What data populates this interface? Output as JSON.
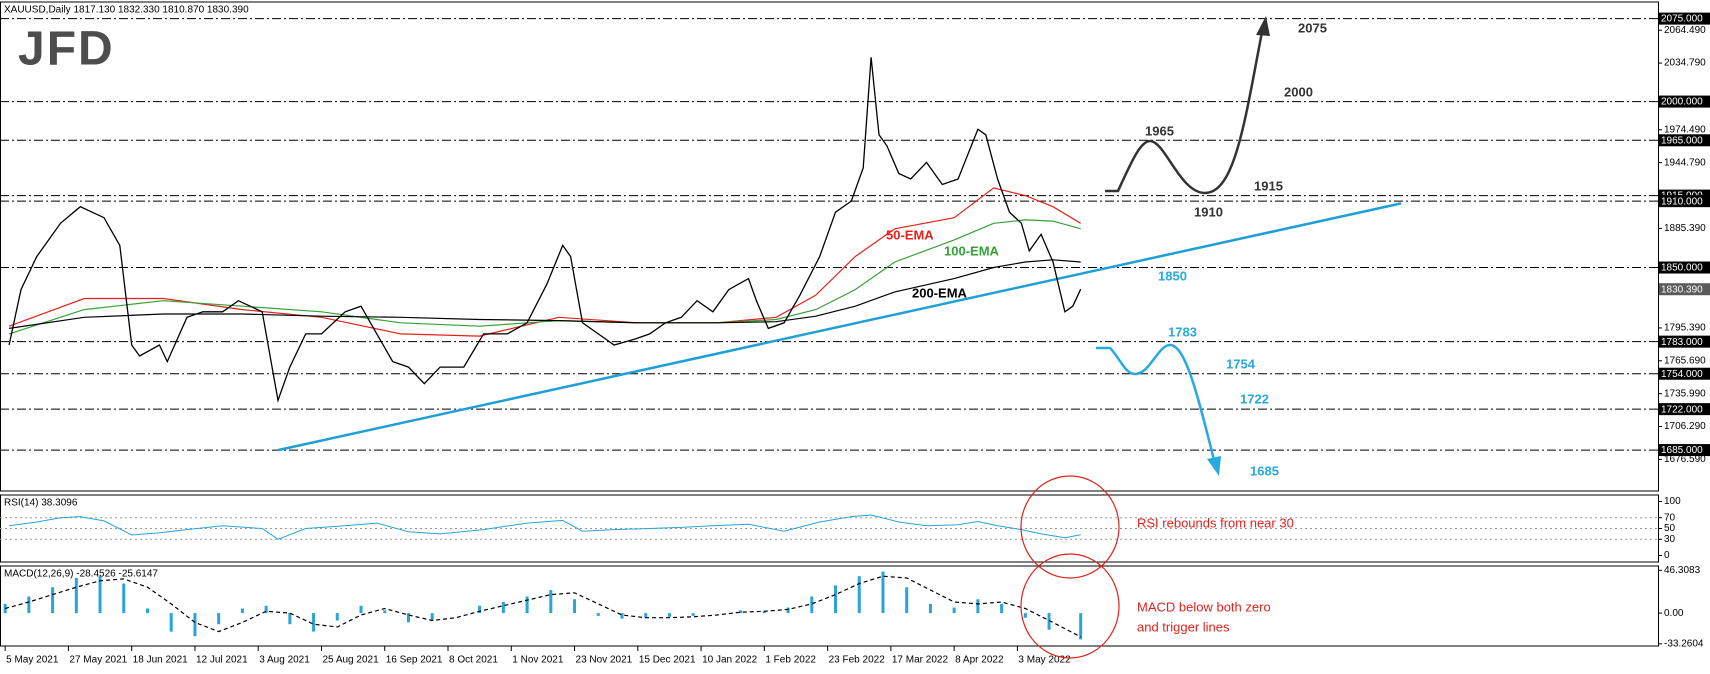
{
  "chart_data": [
    {
      "type": "line",
      "title": "XAUUSD,Daily  1817.130 1832.330 1810.870 1830.390",
      "logo": "JFD",
      "x": [
        1,
        4,
        8,
        14,
        19,
        25,
        29,
        32,
        34,
        39,
        41,
        46,
        50,
        55,
        59,
        65,
        69,
        72,
        76,
        80,
        86,
        90,
        94,
        98,
        102,
        106,
        110,
        116,
        121,
        127,
        132,
        137,
        141,
        143,
        146,
        150,
        154,
        159,
        163,
        167,
        171,
        175,
        179,
        183,
        188,
        190,
        193,
        197,
        201,
        206,
        210,
        214,
        217,
        219,
        221,
        223,
        226,
        229,
        233,
        237,
        241,
        246,
        248,
        251,
        254,
        257,
        259,
        262,
        265,
        268,
        270,
        272
      ],
      "values": [
        1780,
        1830,
        1860,
        1890,
        1905,
        1895,
        1870,
        1780,
        1770,
        1780,
        1765,
        1805,
        1810,
        1810,
        1820,
        1810,
        1730,
        1760,
        1790,
        1790,
        1810,
        1815,
        1790,
        1765,
        1760,
        1745,
        1760,
        1760,
        1790,
        1790,
        1800,
        1835,
        1870,
        1860,
        1800,
        1790,
        1780,
        1785,
        1790,
        1800,
        1805,
        1820,
        1810,
        1830,
        1840,
        1820,
        1795,
        1800,
        1825,
        1860,
        1900,
        1910,
        1940,
        2040,
        1970,
        1960,
        1935,
        1930,
        1945,
        1925,
        1930,
        1975,
        1970,
        1930,
        1900,
        1890,
        1865,
        1880,
        1855,
        1810,
        1815,
        1830.39
      ],
      "last_value_label": "1830.390",
      "color": "#000000",
      "series": [
        {
          "name": "50-EMA",
          "color": "#e3231b",
          "x": [
            1,
            20,
            40,
            60,
            80,
            100,
            120,
            140,
            160,
            180,
            195,
            205,
            215,
            225,
            240,
            250,
            258,
            265,
            272
          ],
          "values": [
            1797,
            1822,
            1822,
            1812,
            1805,
            1790,
            1788,
            1805,
            1800,
            1800,
            1805,
            1825,
            1860,
            1885,
            1895,
            1922,
            1915,
            1905,
            1890
          ]
        },
        {
          "name": "100-EMA",
          "color": "#36a136",
          "x": [
            1,
            20,
            40,
            60,
            80,
            100,
            120,
            140,
            160,
            180,
            195,
            205,
            215,
            225,
            240,
            250,
            258,
            265,
            272
          ],
          "values": [
            1790,
            1812,
            1820,
            1815,
            1810,
            1800,
            1797,
            1802,
            1800,
            1800,
            1803,
            1812,
            1830,
            1855,
            1875,
            1890,
            1893,
            1892,
            1885
          ]
        },
        {
          "name": "200-EMA",
          "color": "#000000",
          "x": [
            1,
            20,
            40,
            60,
            80,
            100,
            120,
            140,
            160,
            180,
            195,
            205,
            215,
            225,
            240,
            250,
            258,
            265,
            272
          ],
          "values": [
            1795,
            1805,
            1808,
            1808,
            1806,
            1805,
            1803,
            1802,
            1800,
            1800,
            1801,
            1806,
            1815,
            1828,
            1840,
            1850,
            1855,
            1857,
            1855
          ]
        }
      ],
      "trendline": {
        "x": [
          69,
          353
        ],
        "values": [
          1685,
          1908
        ],
        "color": "#1e9fd7"
      },
      "levels": [
        {
          "value": 2075,
          "label": "2075.000"
        },
        {
          "value": 2000,
          "label": "2000.000"
        },
        {
          "value": 1965,
          "label": "1965.000"
        },
        {
          "value": 1915,
          "label": "1915.000"
        },
        {
          "value": 1910,
          "label": "1910.000"
        },
        {
          "value": 1850,
          "label": "1850.000"
        },
        {
          "value": 1783,
          "label": "1783.000"
        },
        {
          "value": 1754,
          "label": "1754.000"
        },
        {
          "value": 1722,
          "label": "1722.000"
        },
        {
          "value": 1685,
          "label": "1685.000"
        }
      ],
      "scenarios": [
        {
          "color": "#333333",
          "labels": [
            "1965",
            "1910",
            "1915",
            "2000",
            "2075"
          ]
        },
        {
          "color": "#27a9e1",
          "labels": [
            "1850",
            "1783",
            "1754",
            "1722",
            "1685"
          ]
        }
      ],
      "xlim": [
        -1.3,
        418
      ],
      "ylim": [
        1648,
        2090
      ],
      "xticks": [
        {
          "value": 0,
          "label": "5 May 2021"
        },
        {
          "value": 16,
          "label": "27 May 2021"
        },
        {
          "value": 32,
          "label": "18 Jun 2021"
        },
        {
          "value": 48,
          "label": "12 Jul 2021"
        },
        {
          "value": 64,
          "label": "3 Aug 2021"
        },
        {
          "value": 80,
          "label": "25 Aug 2021"
        },
        {
          "value": 96,
          "label": "16 Sep 2021"
        },
        {
          "value": 112,
          "label": "8 Oct 2021"
        },
        {
          "value": 128,
          "label": "1 Nov 2021"
        },
        {
          "value": 144,
          "label": "23 Nov 2021"
        },
        {
          "value": 160,
          "label": "15 Dec 2021"
        },
        {
          "value": 176,
          "label": "10 Jan 2022"
        },
        {
          "value": 192,
          "label": "1 Feb 2022"
        },
        {
          "value": 208,
          "label": "23 Feb 2022"
        },
        {
          "value": 224,
          "label": "17 Mar 2022"
        },
        {
          "value": 240,
          "label": "8 Apr 2022"
        },
        {
          "value": 256,
          "label": "3 May 2022"
        }
      ],
      "yticks": [
        {
          "value": 2064.49,
          "label": "2064.490"
        },
        {
          "value": 2034.79,
          "label": "2034.790"
        },
        {
          "value": 1974.49,
          "label": "1974.490"
        },
        {
          "value": 1944.79,
          "label": "1944.790"
        },
        {
          "value": 1885.39,
          "label": "1885.390"
        },
        {
          "value": 1795.39,
          "label": "1795.390"
        },
        {
          "value": 1765.69,
          "label": "1765.690"
        },
        {
          "value": 1735.99,
          "label": "1735.990"
        },
        {
          "value": 1706.29,
          "label": "1706.290"
        },
        {
          "value": 1676.59,
          "label": "1676.590"
        }
      ]
    },
    {
      "type": "line",
      "title": "RSI(14) 38.3096",
      "x": [
        1,
        8,
        14,
        19,
        25,
        32,
        39,
        46,
        55,
        65,
        69,
        76,
        86,
        94,
        102,
        110,
        121,
        132,
        141,
        146,
        154,
        163,
        171,
        179,
        188,
        197,
        206,
        214,
        219,
        226,
        233,
        241,
        246,
        251,
        257,
        262,
        268,
        272
      ],
      "values": [
        55,
        62,
        70,
        72,
        64,
        38,
        42,
        48,
        55,
        50,
        30,
        50,
        55,
        60,
        44,
        40,
        48,
        60,
        65,
        45,
        48,
        50,
        52,
        55,
        58,
        45,
        62,
        72,
        75,
        62,
        55,
        57,
        63,
        55,
        48,
        40,
        33,
        38.3096
      ],
      "color": "#2aa3d6",
      "ylim": [
        -12,
        112
      ],
      "yticks": [
        100,
        70,
        50,
        30,
        0
      ],
      "annotation": "RSI rebounds from near 30"
    },
    {
      "type": "macd",
      "title": "MACD(12,26,9) -28.4526 -25.6147",
      "x": [
        0,
        6,
        12,
        18,
        24,
        30,
        36,
        42,
        48,
        54,
        60,
        66,
        72,
        78,
        84,
        90,
        96,
        102,
        108,
        114,
        120,
        126,
        132,
        138,
        144,
        150,
        156,
        162,
        168,
        174,
        180,
        186,
        192,
        198,
        204,
        210,
        216,
        222,
        228,
        234,
        240,
        246,
        252,
        258,
        264,
        272
      ],
      "values": [
        10,
        18,
        28,
        38,
        40,
        32,
        5,
        -20,
        -25,
        -12,
        5,
        8,
        -12,
        -20,
        -8,
        8,
        3,
        -10,
        -8,
        0,
        8,
        12,
        18,
        25,
        15,
        -3,
        -6,
        -5,
        -4,
        -3,
        0,
        3,
        2,
        6,
        18,
        30,
        40,
        45,
        28,
        10,
        6,
        15,
        10,
        -5,
        -18,
        -28.4526
      ],
      "color": "#2aa3d6",
      "signal": {
        "color": "#000000",
        "values": [
          5,
          12,
          20,
          28,
          35,
          37,
          28,
          10,
          -10,
          -20,
          -10,
          2,
          0,
          -12,
          -15,
          -2,
          5,
          -2,
          -8,
          -5,
          2,
          8,
          14,
          20,
          22,
          10,
          -2,
          -5,
          -5,
          -4,
          -2,
          1,
          2,
          4,
          10,
          20,
          32,
          40,
          38,
          25,
          12,
          10,
          12,
          5,
          -8,
          -25.6147
        ]
      },
      "ylim": [
        -35.6,
        51
      ],
      "yticks": [
        46.3083,
        {
          "value": 0,
          "label": "0.00"
        },
        -33.2604
      ],
      "annotation": [
        "MACD below both zero",
        "and trigger lines"
      ]
    }
  ]
}
